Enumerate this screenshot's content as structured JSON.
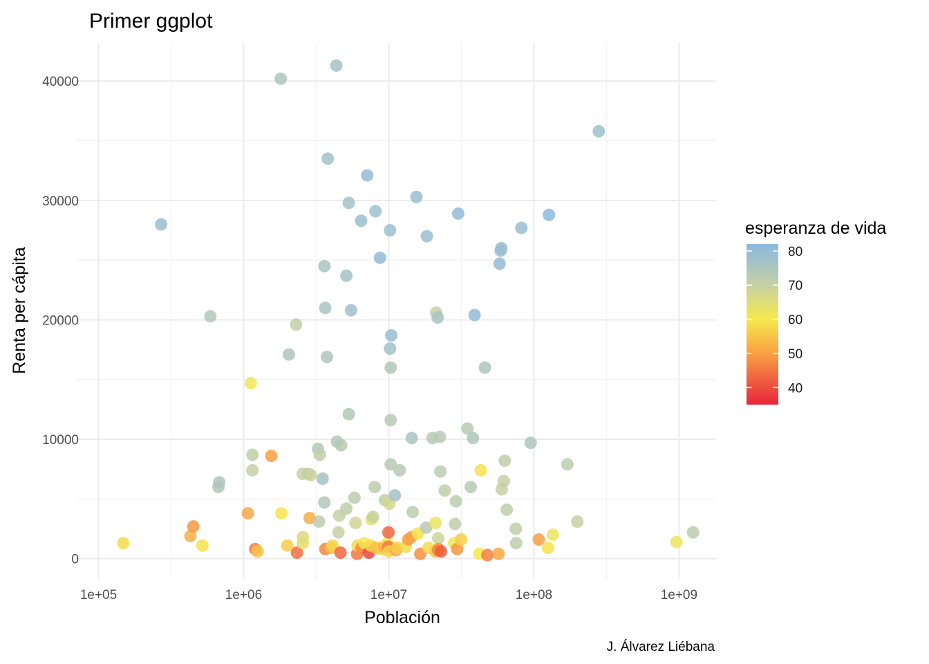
{
  "chart_data": {
    "type": "scatter",
    "title": "Primer ggplot",
    "xlabel": "Población",
    "ylabel": "Renta per cápita",
    "caption": "J. Álvarez Liébana",
    "x_scale": "log10",
    "xlim": [
      70000,
      1800000000
    ],
    "ylim": [
      -1700,
      43200
    ],
    "x_ticks": [
      100000,
      1000000,
      10000000,
      100000000,
      1000000000
    ],
    "x_tick_labels": [
      "1e+05",
      "1e+06",
      "1e+07",
      "1e+08",
      "1e+09"
    ],
    "y_ticks": [
      0,
      10000,
      20000,
      30000,
      40000
    ],
    "y_tick_labels": [
      "0",
      "10000",
      "20000",
      "30000",
      "40000"
    ],
    "grid": true,
    "legend": {
      "title": "esperanza de vida",
      "position": "right",
      "range": [
        35,
        82
      ],
      "ticks": [
        40,
        50,
        60,
        70,
        80
      ],
      "tick_labels": [
        "40",
        "50",
        "60",
        "70",
        "80"
      ],
      "colors": [
        {
          "value": 35,
          "color": "#e8243c"
        },
        {
          "value": 50,
          "color": "#f8a043"
        },
        {
          "value": 60,
          "color": "#f6e94e"
        },
        {
          "value": 70,
          "color": "#c6d0a4"
        },
        {
          "value": 82,
          "color": "#8ab8e0"
        }
      ]
    },
    "color_variable": "esperanza de vida",
    "points": [
      [
        148000,
        1300,
        58
      ],
      [
        270000,
        28000,
        79
      ],
      [
        430000,
        1900,
        52
      ],
      [
        450000,
        2700,
        49
      ],
      [
        520000,
        1100,
        59
      ],
      [
        590000,
        20300,
        74
      ],
      [
        670000,
        6000,
        74
      ],
      [
        680000,
        6400,
        75
      ],
      [
        1070000,
        3800,
        51
      ],
      [
        1120000,
        14700,
        61
      ],
      [
        1150000,
        8700,
        71
      ],
      [
        1150000,
        7400,
        70
      ],
      [
        1200000,
        800,
        46
      ],
      [
        1250000,
        600,
        55
      ],
      [
        1550000,
        8600,
        50
      ],
      [
        1800000,
        40200,
        75
      ],
      [
        1820000,
        3800,
        59
      ],
      [
        2000000,
        1100,
        56
      ],
      [
        2050000,
        17100,
        75
      ],
      [
        2300000,
        19600,
        71
      ],
      [
        2330000,
        500,
        44
      ],
      [
        2550000,
        7100,
        70
      ],
      [
        2560000,
        1800,
        66
      ],
      [
        2560000,
        1300,
        64
      ],
      [
        2780000,
        7100,
        71
      ],
      [
        2850000,
        3400,
        52
      ],
      [
        2900000,
        7000,
        69
      ],
      [
        3250000,
        9200,
        74
      ],
      [
        3300000,
        3100,
        72
      ],
      [
        3350000,
        8700,
        71
      ],
      [
        3500000,
        6700,
        77
      ],
      [
        3600000,
        4700,
        74
      ],
      [
        3600000,
        24500,
        76
      ],
      [
        3650000,
        21000,
        76
      ],
      [
        3650000,
        800,
        47
      ],
      [
        3750000,
        16900,
        75
      ],
      [
        3800000,
        33500,
        77
      ],
      [
        4000000,
        900,
        54
      ],
      [
        4100000,
        1100,
        57
      ],
      [
        4350000,
        41300,
        77
      ],
      [
        4400000,
        9800,
        74
      ],
      [
        4500000,
        2200,
        70
      ],
      [
        4550000,
        3600,
        70
      ],
      [
        4650000,
        500,
        43
      ],
      [
        4700000,
        9500,
        73
      ],
      [
        5100000,
        23700,
        77
      ],
      [
        5100000,
        4200,
        71
      ],
      [
        5300000,
        12100,
        74
      ],
      [
        5300000,
        29800,
        77
      ],
      [
        5500000,
        20800,
        78
      ],
      [
        5800000,
        5100,
        72
      ],
      [
        5900000,
        3000,
        68
      ],
      [
        6050000,
        400,
        45
      ],
      [
        6100000,
        1100,
        58
      ],
      [
        6450000,
        28300,
        79
      ],
      [
        6500000,
        900,
        47
      ],
      [
        6800000,
        1300,
        60
      ],
      [
        7100000,
        32100,
        80
      ],
      [
        7300000,
        500,
        39
      ],
      [
        7500000,
        1100,
        58
      ],
      [
        7600000,
        3300,
        63
      ],
      [
        7800000,
        3500,
        70
      ],
      [
        8000000,
        6000,
        72
      ],
      [
        8100000,
        29100,
        78
      ],
      [
        8150000,
        900,
        54
      ],
      [
        8700000,
        25200,
        80
      ],
      [
        8900000,
        800,
        56
      ],
      [
        9300000,
        1000,
        52
      ],
      [
        9400000,
        4900,
        71
      ],
      [
        9800000,
        1300,
        60
      ],
      [
        9900000,
        1000,
        45
      ],
      [
        9950000,
        2200,
        43
      ],
      [
        10000000,
        600,
        57
      ],
      [
        10100000,
        4600,
        67
      ],
      [
        10200000,
        17600,
        77
      ],
      [
        10200000,
        27500,
        78
      ],
      [
        10300000,
        11600,
        73
      ],
      [
        10300000,
        7900,
        73
      ],
      [
        10300000,
        16000,
        74
      ],
      [
        10400000,
        18700,
        79
      ],
      [
        11000000,
        5300,
        77
      ],
      [
        11200000,
        700,
        51
      ],
      [
        11400000,
        900,
        56
      ],
      [
        11900000,
        7400,
        73
      ],
      [
        13100000,
        1000,
        58
      ],
      [
        13600000,
        1600,
        50
      ],
      [
        14300000,
        1800,
        50
      ],
      [
        14400000,
        10100,
        76
      ],
      [
        14600000,
        3900,
        72
      ],
      [
        15500000,
        30300,
        79
      ],
      [
        15900000,
        2100,
        59
      ],
      [
        16500000,
        400,
        48
      ],
      [
        18100000,
        2600,
        73
      ],
      [
        18300000,
        27000,
        79
      ],
      [
        18800000,
        900,
        58
      ],
      [
        20000000,
        10100,
        73
      ],
      [
        21000000,
        3000,
        62
      ],
      [
        21000000,
        600,
        55
      ],
      [
        21200000,
        20600,
        70
      ],
      [
        21700000,
        20200,
        76
      ],
      [
        21900000,
        700,
        46
      ],
      [
        21900000,
        1700,
        69
      ],
      [
        22000000,
        800,
        48
      ],
      [
        22500000,
        10200,
        73
      ],
      [
        22700000,
        7300,
        72
      ],
      [
        22900000,
        600,
        42
      ],
      [
        24300000,
        5700,
        71
      ],
      [
        28200000,
        1300,
        61
      ],
      [
        28600000,
        2900,
        71
      ],
      [
        29000000,
        4800,
        72
      ],
      [
        29600000,
        800,
        49
      ],
      [
        30100000,
        28900,
        80
      ],
      [
        31500000,
        1600,
        56
      ],
      [
        34800000,
        10900,
        73
      ],
      [
        36700000,
        6000,
        73
      ],
      [
        38000000,
        10100,
        75
      ],
      [
        39000000,
        20400,
        80
      ],
      [
        42000000,
        400,
        60
      ],
      [
        43000000,
        7400,
        59
      ],
      [
        46000000,
        16000,
        75
      ],
      [
        47800000,
        300,
        46
      ],
      [
        57000000,
        400,
        51
      ],
      [
        58000000,
        24700,
        80
      ],
      [
        59000000,
        25800,
        79
      ],
      [
        59700000,
        26000,
        79
      ],
      [
        60000000,
        5800,
        70
      ],
      [
        62000000,
        6500,
        70
      ],
      [
        63000000,
        8200,
        71
      ],
      [
        65000000,
        4100,
        71
      ],
      [
        75000000,
        2500,
        71
      ],
      [
        75500000,
        1300,
        72
      ],
      [
        82000000,
        27700,
        79
      ],
      [
        95000000,
        9700,
        75
      ],
      [
        108000000,
        1600,
        50
      ],
      [
        125000000,
        900,
        59
      ],
      [
        127000000,
        28800,
        82
      ],
      [
        135000000,
        2000,
        62
      ],
      [
        170000000,
        7900,
        72
      ],
      [
        199000000,
        3100,
        70
      ],
      [
        280000000,
        35800,
        78
      ],
      [
        960000000,
        1400,
        62
      ],
      [
        1250000000,
        2200,
        72
      ]
    ]
  }
}
